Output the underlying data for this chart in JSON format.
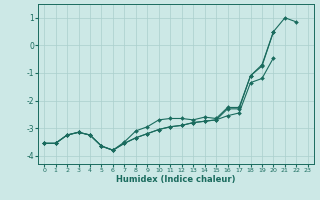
{
  "xlabel": "Humidex (Indice chaleur)",
  "x": [
    0,
    1,
    2,
    3,
    4,
    5,
    6,
    7,
    8,
    9,
    10,
    11,
    12,
    13,
    14,
    15,
    16,
    17,
    18,
    19,
    20,
    21,
    22,
    23
  ],
  "line1": [
    -3.55,
    -3.55,
    -3.25,
    -3.15,
    -3.25,
    -3.65,
    -3.8,
    -3.5,
    -3.1,
    -2.95,
    -2.7,
    -2.65,
    -2.65,
    -2.7,
    -2.6,
    -2.65,
    -2.25,
    -2.25,
    -1.1,
    -0.7,
    0.5,
    1.0,
    0.85,
    null
  ],
  "line2": [
    -3.55,
    -3.55,
    -3.25,
    -3.15,
    -3.25,
    -3.65,
    -3.8,
    -3.55,
    -3.35,
    -3.2,
    -3.05,
    -2.95,
    -2.9,
    -2.8,
    -2.75,
    -2.7,
    -2.3,
    -2.3,
    -1.1,
    -0.75,
    0.5,
    null,
    null,
    null
  ],
  "line3": [
    -3.55,
    -3.55,
    -3.25,
    -3.15,
    -3.25,
    -3.65,
    -3.8,
    -3.55,
    -3.35,
    -3.2,
    -3.05,
    -2.95,
    -2.9,
    -2.8,
    -2.75,
    -2.7,
    -2.55,
    -2.45,
    -1.35,
    -1.2,
    -0.45,
    null,
    null,
    null
  ],
  "bg_color": "#cce8e6",
  "grid_color": "#aacfcd",
  "line_color": "#1a6b5e",
  "ylim": [
    -4.3,
    1.5
  ],
  "xlim": [
    -0.5,
    23.5
  ],
  "yticks": [
    -4,
    -3,
    -2,
    -1,
    0,
    1
  ],
  "xticks": [
    0,
    1,
    2,
    3,
    4,
    5,
    6,
    7,
    8,
    9,
    10,
    11,
    12,
    13,
    14,
    15,
    16,
    17,
    18,
    19,
    20,
    21,
    22,
    23
  ]
}
